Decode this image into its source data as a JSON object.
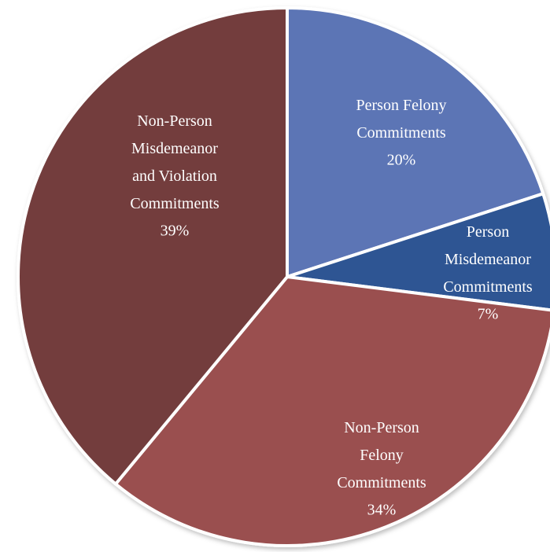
{
  "chart_data": {
    "type": "pie",
    "categories": [
      "Person Felony Commitments",
      "Person Misdemeanor Commitments",
      "Non-Person Felony Commitments",
      "Non-Person Misdemeanor and Violation Commitments"
    ],
    "values": [
      20,
      7,
      34,
      39
    ],
    "value_labels": [
      "20%",
      "7%",
      "34%",
      "39%"
    ],
    "colors": [
      "#5b74b5",
      "#2e5593",
      "#9a5050",
      "#733d3d"
    ]
  }
}
